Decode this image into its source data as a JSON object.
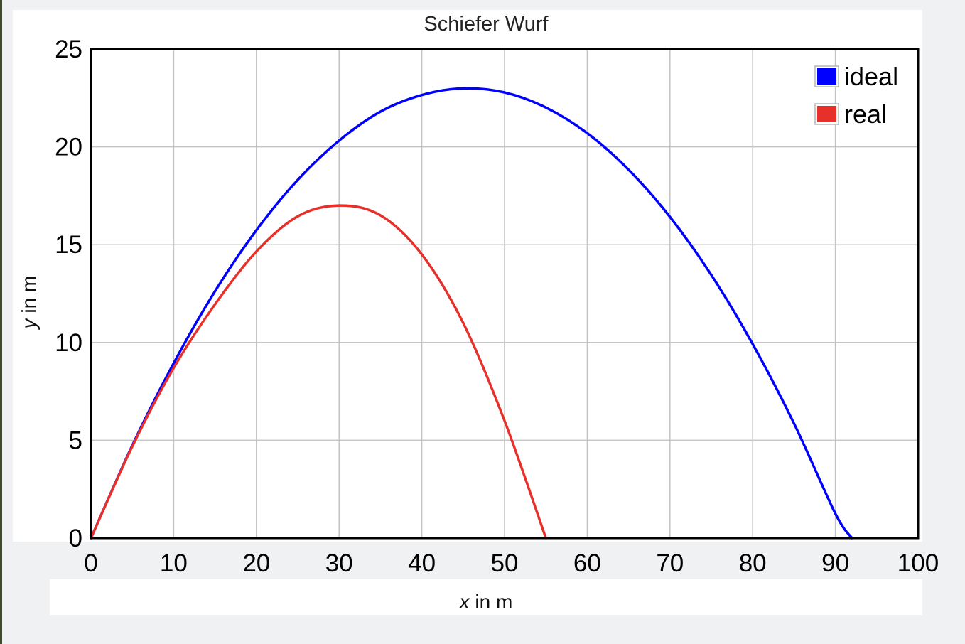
{
  "chart_data": {
    "type": "line",
    "title": "Schiefer Wurf",
    "xlabel_var": "x",
    "xlabel_unit": " in m",
    "ylabel_var": "y",
    "ylabel_unit": " in m",
    "xlim": [
      0,
      100
    ],
    "ylim": [
      0,
      25
    ],
    "xticks": [
      0,
      10,
      20,
      30,
      40,
      50,
      60,
      70,
      80,
      90,
      100
    ],
    "yticks": [
      0,
      5,
      10,
      15,
      20,
      25
    ],
    "grid": true,
    "legend_position": "top-right",
    "series": [
      {
        "name": "ideal",
        "color": "#0000ff",
        "x": [
          0,
          5,
          10,
          15,
          20,
          25,
          30,
          35,
          40,
          45,
          50,
          55,
          60,
          65,
          70,
          75,
          80,
          85,
          90,
          92
        ],
        "y": [
          0,
          4.74,
          8.94,
          12.62,
          15.74,
          18.31,
          20.32,
          21.8,
          22.65,
          22.99,
          22.78,
          22.01,
          20.7,
          18.83,
          16.42,
          13.45,
          9.92,
          5.86,
          1.25,
          0
        ]
      },
      {
        "name": "real",
        "color": "#e8302a",
        "x": [
          0,
          5,
          10,
          15,
          20,
          25,
          30,
          35,
          40,
          45,
          50,
          55
        ],
        "y": [
          0,
          4.69,
          8.7,
          11.95,
          14.65,
          16.45,
          17.0,
          16.5,
          14.5,
          11.0,
          6.0,
          0
        ]
      }
    ]
  }
}
